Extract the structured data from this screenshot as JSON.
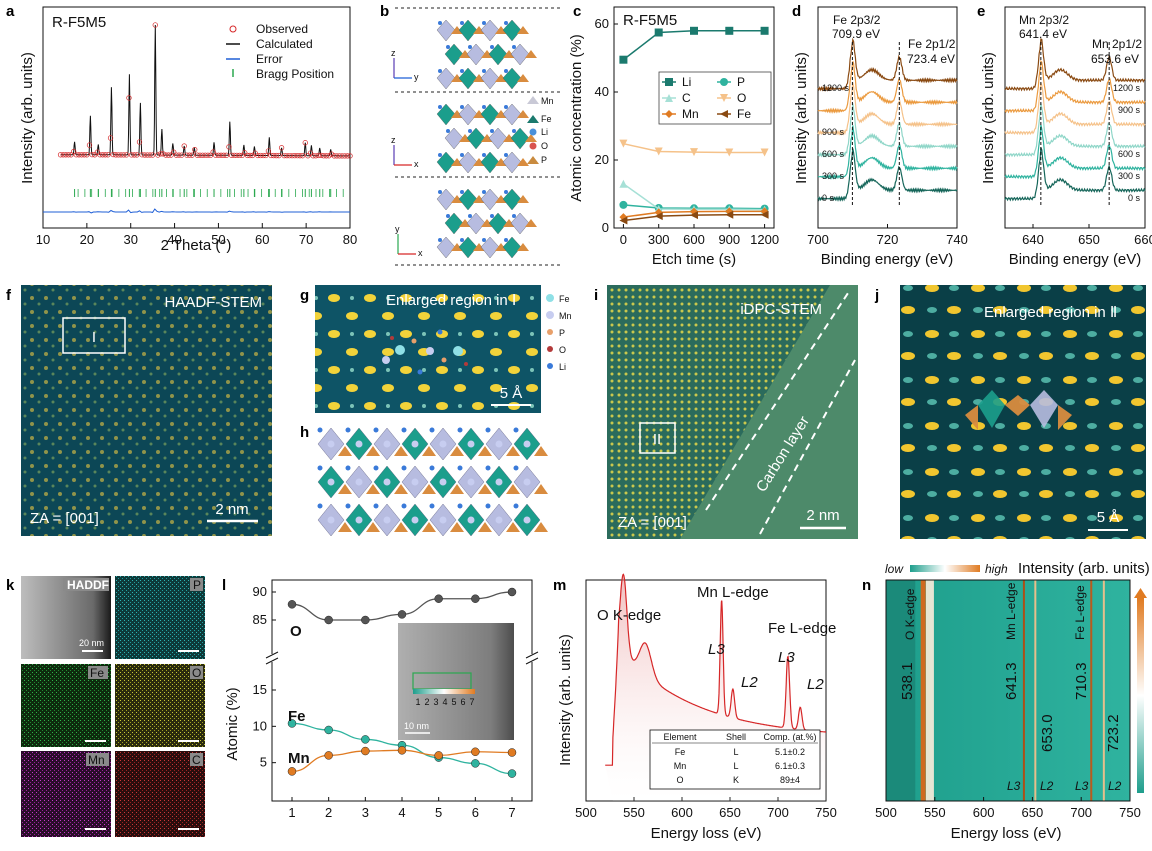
{
  "panels": [
    "a",
    "b",
    "c",
    "d",
    "e",
    "f",
    "g",
    "h",
    "i",
    "j",
    "k",
    "l",
    "m",
    "n"
  ],
  "chart_data": [
    {
      "id": "a",
      "type": "line",
      "sample": "R-F5M5",
      "xlabel": "2 Theta (°)",
      "ylabel": "Intensity (arb. units)",
      "xlim": [
        10,
        80
      ],
      "xticks": [
        "10",
        "20",
        "30",
        "40",
        "50",
        "60",
        "70",
        "80"
      ],
      "legend": [
        "Observed",
        "Calculated",
        "Error",
        "Bragg Position"
      ],
      "peaks": [
        {
          "x": 17.2,
          "h": 0.1
        },
        {
          "x": 20.8,
          "h": 0.3
        },
        {
          "x": 22.6,
          "h": 0.08
        },
        {
          "x": 25.6,
          "h": 0.52
        },
        {
          "x": 29.7,
          "h": 0.62
        },
        {
          "x": 32.2,
          "h": 0.4
        },
        {
          "x": 35.6,
          "h": 1.0
        },
        {
          "x": 37.1,
          "h": 0.2
        },
        {
          "x": 39.6,
          "h": 0.09
        },
        {
          "x": 42.2,
          "h": 0.07
        },
        {
          "x": 44.5,
          "h": 0.06
        },
        {
          "x": 49.0,
          "h": 0.1
        },
        {
          "x": 52.6,
          "h": 0.26
        },
        {
          "x": 55.8,
          "h": 0.08
        },
        {
          "x": 58.2,
          "h": 0.07
        },
        {
          "x": 61.6,
          "h": 0.14
        },
        {
          "x": 64.4,
          "h": 0.06
        },
        {
          "x": 69.8,
          "h": 0.1
        },
        {
          "x": 71.2,
          "h": 0.08
        },
        {
          "x": 73.1,
          "h": 0.06
        },
        {
          "x": 75.6,
          "h": 0.05
        }
      ]
    },
    {
      "id": "c",
      "type": "line",
      "sample": "R-F5M5",
      "xlabel": "Etch time (s)",
      "ylabel": "Atomic concentration (%)",
      "xlim": [
        -80,
        1280
      ],
      "ylim": [
        0,
        65
      ],
      "xticks": [
        "0",
        "300",
        "600",
        "900",
        "1200"
      ],
      "yticks": [
        "0",
        "20",
        "40",
        "60"
      ],
      "x": [
        0,
        300,
        600,
        900,
        1200
      ],
      "series": [
        {
          "name": "Li",
          "values": [
            49.5,
            57.5,
            58.0,
            58.0,
            58.0
          ],
          "color": "#1b7a6e",
          "marker": "square"
        },
        {
          "name": "P",
          "values": [
            6.8,
            5.9,
            5.8,
            5.8,
            5.7
          ],
          "color": "#2fb39f",
          "marker": "circle"
        },
        {
          "name": "C",
          "values": [
            13.0,
            5.6,
            5.5,
            5.5,
            5.4
          ],
          "color": "#a6e0d6",
          "marker": "triangle"
        },
        {
          "name": "O",
          "values": [
            24.8,
            22.5,
            22.3,
            22.2,
            22.2
          ],
          "color": "#f5c28a",
          "marker": "triangle-down"
        },
        {
          "name": "Mn",
          "values": [
            3.2,
            4.6,
            4.8,
            4.9,
            4.9
          ],
          "color": "#e07b22",
          "marker": "diamond"
        },
        {
          "name": "Fe",
          "values": [
            2.2,
            3.5,
            3.8,
            3.9,
            3.9
          ],
          "color": "#8a4a12",
          "marker": "triangle-left"
        }
      ]
    },
    {
      "id": "d",
      "type": "line",
      "xlabel": "Binding energy (eV)",
      "ylabel": "Intensity (arb. units)",
      "xlim": [
        700,
        740
      ],
      "xticks": [
        "700",
        "720",
        "740"
      ],
      "peak1_label": "Fe 2p3/2",
      "peak1_value": "709.9 eV",
      "peak1_x": 709.9,
      "peak2_label": "Fe 2p1/2",
      "peak2_value": "723.4 eV",
      "peak2_x": 723.4,
      "series": [
        {
          "name": "0 s",
          "color": "#16665a"
        },
        {
          "name": "300 s",
          "color": "#2fb39f"
        },
        {
          "name": "600 s",
          "color": "#8fd6c8"
        },
        {
          "name": "900 s",
          "color": "#f5c28a"
        },
        {
          "name": "",
          "color": "#eb9a3f"
        },
        {
          "name": "1200 s",
          "color": "#8a4a12"
        }
      ]
    },
    {
      "id": "e",
      "type": "line",
      "xlabel": "Binding energy (eV)",
      "ylabel": "Intensity (arb. units)",
      "xlim": [
        635,
        660
      ],
      "xticks": [
        "640",
        "650",
        "660"
      ],
      "peak1_label": "Mn 2p3/2",
      "peak1_value": "641.4 eV",
      "peak1_x": 641.4,
      "peak2_label": "Mn 2p1/2",
      "peak2_value": "653.6 eV",
      "peak2_x": 653.6,
      "series": [
        {
          "name": "0 s",
          "color": "#16665a"
        },
        {
          "name": "300 s",
          "color": "#2fb39f"
        },
        {
          "name": "600 s",
          "color": "#8fd6c8"
        },
        {
          "name": "",
          "color": "#f5c28a"
        },
        {
          "name": "900 s",
          "color": "#eb9a3f"
        },
        {
          "name": "1200 s",
          "color": "#8a4a12"
        }
      ]
    },
    {
      "id": "l",
      "type": "line",
      "xlabel": "",
      "ylabel": "Atomic (%)",
      "x": [
        1,
        2,
        3,
        4,
        5,
        6,
        7
      ],
      "xticks": [
        "1",
        "2",
        "3",
        "4",
        "5",
        "6",
        "7"
      ],
      "yticks_low": [
        "5",
        "10",
        "15"
      ],
      "yticks_high": [
        "85",
        "90"
      ],
      "series": [
        {
          "name": "O",
          "values": [
            87.8,
            85.0,
            85.0,
            86.0,
            88.8,
            88.8,
            90.0
          ],
          "color": "#555555"
        },
        {
          "name": "Fe",
          "values": [
            10.4,
            9.5,
            8.2,
            7.4,
            5.7,
            4.9,
            3.5
          ],
          "color": "#2fb39f"
        },
        {
          "name": "Mn",
          "values": [
            3.8,
            6.0,
            6.6,
            6.7,
            6.0,
            6.5,
            6.4
          ],
          "color": "#e07b22"
        }
      ],
      "inset_labels": [
        "1",
        "2",
        "3",
        "4",
        "5",
        "6",
        "7"
      ],
      "inset_scale": "10 nm"
    },
    {
      "id": "m",
      "type": "line",
      "xlabel": "Energy loss (eV)",
      "ylabel": "Intensity (arb. units)",
      "xlim": [
        500,
        750
      ],
      "xticks": [
        "500",
        "550",
        "600",
        "650",
        "700",
        "750"
      ],
      "annotations": [
        "O K-edge",
        "Mn L-edge",
        "Fe L-edge",
        "L3",
        "L2",
        "L3",
        "L2"
      ],
      "table": {
        "headers": [
          "Element",
          "Shell",
          "Comp. (at.%)"
        ],
        "rows": [
          [
            "Fe",
            "L",
            "5.1±0.2"
          ],
          [
            "Mn",
            "L",
            "6.1±0.3"
          ],
          [
            "O",
            "K",
            "89±4"
          ]
        ]
      }
    },
    {
      "id": "n",
      "type": "heatmap",
      "xlabel": "Energy loss (eV)",
      "xlim": [
        500,
        750
      ],
      "xticks": [
        "500",
        "550",
        "600",
        "650",
        "700",
        "750"
      ],
      "colorbar": {
        "low": "low",
        "high": "high",
        "label": "Intensity (arb. units)"
      },
      "edges": [
        "O K-edge",
        "Mn L-edge",
        "Fe L-edge"
      ],
      "values": [
        "538.1",
        "641.3",
        "653.0",
        "710.3",
        "723.2"
      ],
      "shells": [
        "L3",
        "L2",
        "L3",
        "L2"
      ]
    }
  ],
  "images": {
    "b_labels": [
      "Mn",
      "Fe",
      "Li",
      "O",
      "P"
    ],
    "b_axes": [
      [
        "z",
        "y"
      ],
      [
        "z",
        "x"
      ],
      [
        "y",
        "x"
      ]
    ],
    "f": {
      "title": "HAADF-STEM",
      "region": "I",
      "za": "ZA = [001]",
      "scale": "2 nm"
    },
    "g": {
      "title": "Enlarged region in Ⅰ",
      "scale": "5 Å",
      "legend": [
        "Fe",
        "Mn",
        "P",
        "O",
        "Li"
      ]
    },
    "i": {
      "title": "iDPC-STEM",
      "region": "II",
      "layer": "Carbon layer",
      "za": "ZA = [001]",
      "scale": "2 nm"
    },
    "j": {
      "title": "Enlarged region in Ⅱ",
      "scale": "5 Å"
    },
    "k": {
      "tiles": [
        "HADDF",
        "P",
        "Fe",
        "O",
        "Mn",
        "C"
      ],
      "scale": "20 nm"
    }
  },
  "colors": {
    "teal": "#1b7a6e",
    "orange": "#e07b22",
    "red": "#d62728",
    "blue": "#1f5fd6",
    "green": "#2aa84f"
  }
}
